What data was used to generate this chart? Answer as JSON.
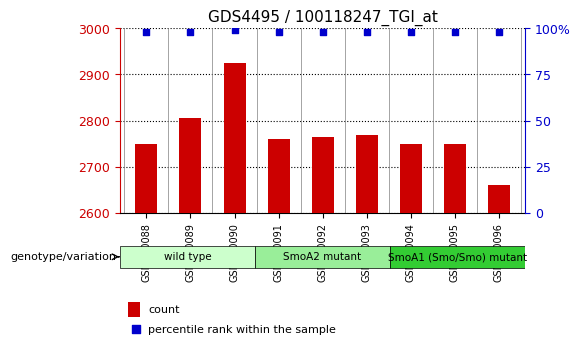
{
  "title": "GDS4495 / 100118247_TGI_at",
  "samples": [
    "GSM840088",
    "GSM840089",
    "GSM840090",
    "GSM840091",
    "GSM840092",
    "GSM840093",
    "GSM840094",
    "GSM840095",
    "GSM840096"
  ],
  "counts": [
    2748,
    2805,
    2925,
    2760,
    2764,
    2768,
    2748,
    2750,
    2660
  ],
  "percentiles": [
    98,
    98,
    99,
    98,
    98,
    98,
    98,
    98,
    98
  ],
  "y_min": 2600,
  "y_max": 3000,
  "y_ticks": [
    2600,
    2700,
    2800,
    2900,
    3000
  ],
  "right_y_ticks": [
    0,
    25,
    50,
    75,
    100
  ],
  "right_y_labels": [
    "0",
    "25",
    "50",
    "75",
    "100%"
  ],
  "bar_color": "#cc0000",
  "dot_color": "#0000cc",
  "bar_width": 0.5,
  "groups": [
    {
      "label": "wild type",
      "start": 0,
      "end": 3,
      "color": "#ccffcc"
    },
    {
      "label": "SmoA2 mutant",
      "start": 3,
      "end": 6,
      "color": "#99ee99"
    },
    {
      "label": "SmoA1 (Smo/Smo) mutant",
      "start": 6,
      "end": 9,
      "color": "#33cc33"
    }
  ],
  "legend_items": [
    {
      "label": "count",
      "color": "#cc0000",
      "marker": "s"
    },
    {
      "label": "percentile rank within the sample",
      "color": "#0000cc",
      "marker": "s"
    }
  ],
  "xlabel_genotype": "genotype/variation",
  "tick_color_left": "#cc0000",
  "tick_color_right": "#0000cc",
  "background_color": "#ffffff",
  "grid_color": "#000000",
  "grid_style": "dotted"
}
